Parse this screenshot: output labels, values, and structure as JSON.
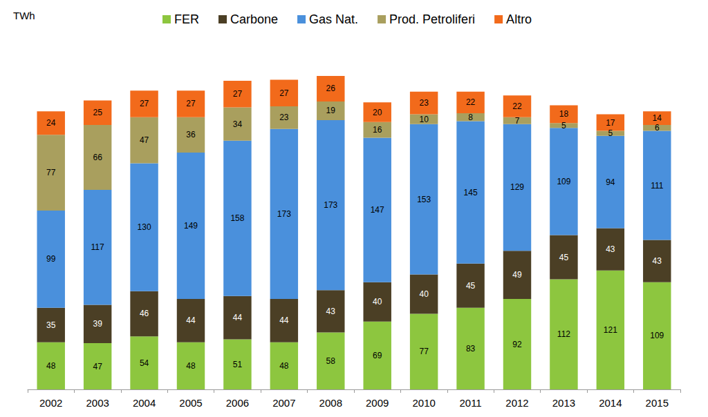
{
  "chart_data": {
    "type": "bar",
    "stacked": true,
    "data_labels": true,
    "tick_labels": "x",
    "grid": false,
    "legend": "top",
    "ylabel": "TWh",
    "categories": [
      "2002",
      "2003",
      "2004",
      "2005",
      "2006",
      "2007",
      "2008",
      "2009",
      "2010",
      "2011",
      "2012",
      "2013",
      "2014",
      "2015"
    ],
    "ylim": [
      0,
      340
    ],
    "series": [
      {
        "name": "FER",
        "color": "#8dc63f",
        "values": [
          48,
          47,
          54,
          48,
          51,
          48,
          58,
          69,
          77,
          83,
          92,
          112,
          121,
          109
        ]
      },
      {
        "name": "Carbone",
        "color": "#4b3f25",
        "values": [
          35,
          39,
          46,
          44,
          44,
          44,
          43,
          40,
          40,
          45,
          49,
          45,
          43,
          43
        ]
      },
      {
        "name": "Gas Nat.",
        "color": "#4a90dc",
        "values": [
          99,
          117,
          130,
          149,
          158,
          173,
          173,
          147,
          153,
          145,
          129,
          109,
          94,
          111
        ]
      },
      {
        "name": "Prod. Petroliferi",
        "color": "#a99f5e",
        "values": [
          77,
          66,
          47,
          36,
          34,
          23,
          19,
          16,
          10,
          8,
          7,
          5,
          5,
          6
        ]
      },
      {
        "name": "Altro",
        "color": "#f26a1b",
        "values": [
          24,
          25,
          27,
          27,
          27,
          27,
          26,
          20,
          23,
          22,
          22,
          18,
          17,
          14
        ]
      }
    ],
    "totals": [
      284,
      294,
      303,
      304,
      314,
      314,
      319,
      293,
      302,
      303,
      299,
      290,
      280,
      283
    ]
  }
}
